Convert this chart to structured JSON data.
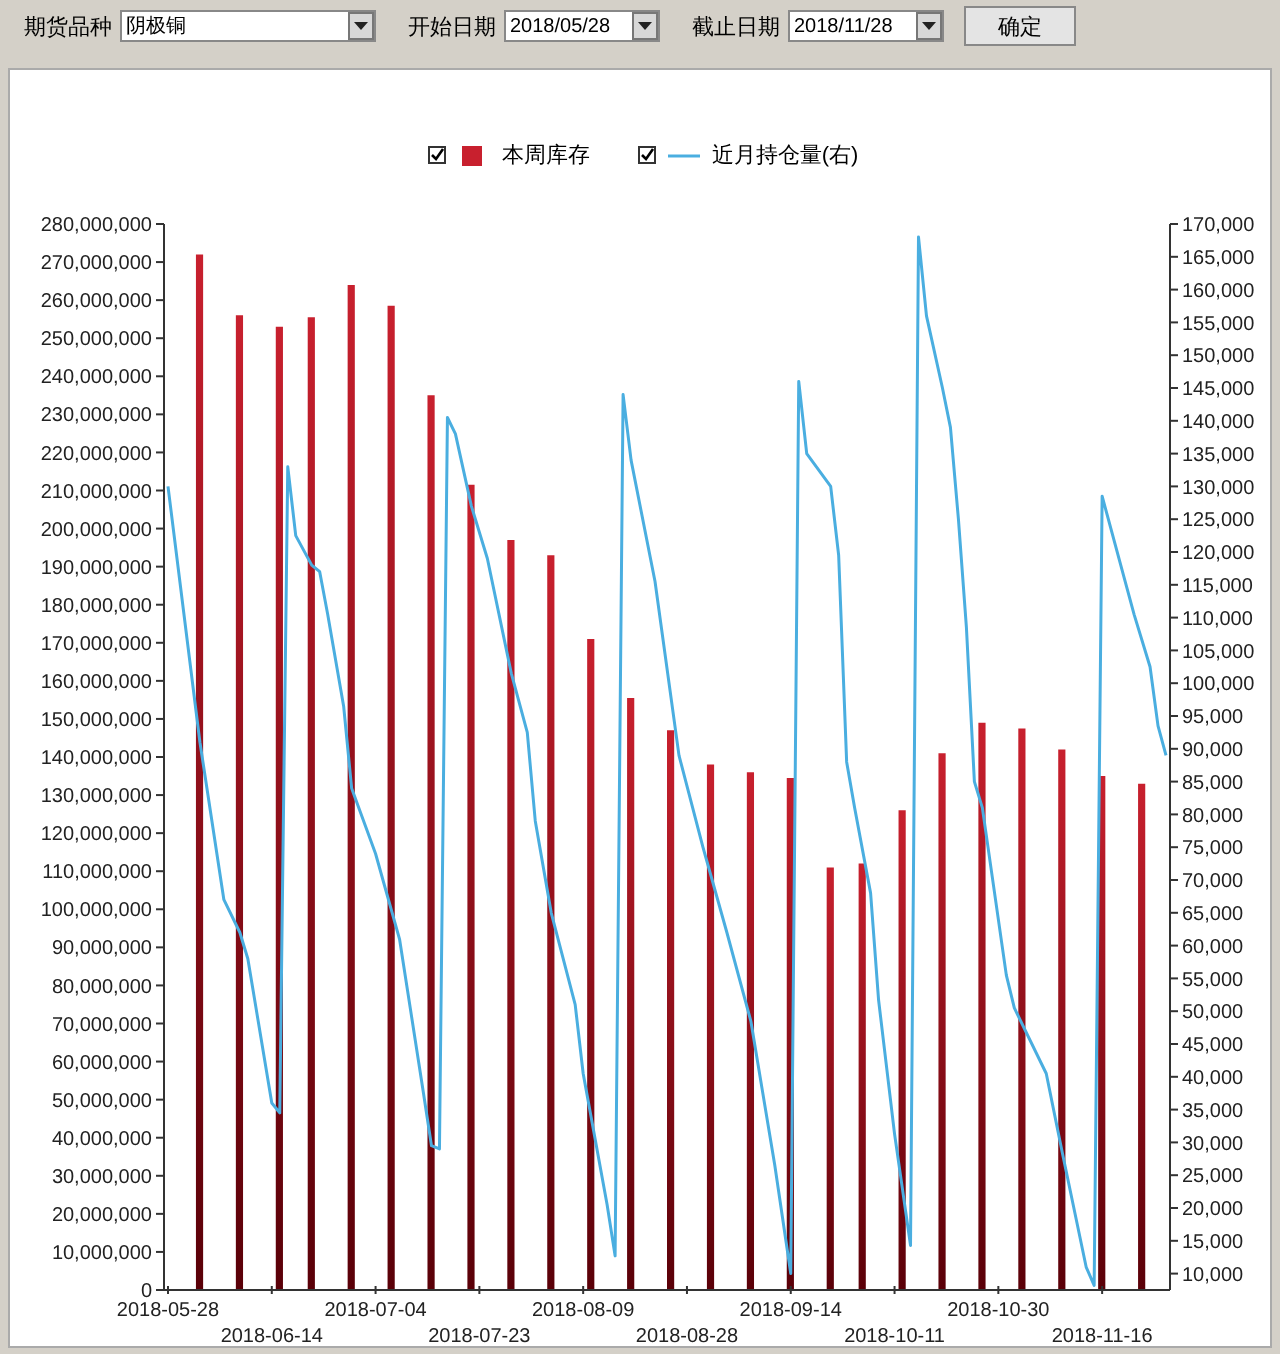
{
  "chart_data": {
    "type": "bar",
    "legend": "top",
    "grid": false,
    "annotations": [
      "期货品种",
      "阴极铜",
      "开始日期",
      "2018/05/28",
      "截止日期",
      "2018/11/28",
      "确定"
    ],
    "categories": [
      "2018-05-28",
      null,
      null,
      null,
      null,
      null,
      null,
      null,
      null,
      null,
      null,
      null,
      null,
      "2018-06-14",
      null,
      null,
      null,
      null,
      null,
      null,
      null,
      null,
      null,
      null,
      null,
      null,
      "2018-07-04",
      null,
      null,
      null,
      null,
      null,
      null,
      null,
      null,
      null,
      null,
      null,
      null,
      "2018-07-23",
      null,
      null,
      null,
      null,
      null,
      null,
      null,
      null,
      null,
      null,
      null,
      null,
      "2018-08-09",
      null,
      null,
      null,
      null,
      null,
      null,
      null,
      null,
      null,
      null,
      null,
      null,
      "2018-08-28",
      null,
      null,
      null,
      null,
      null,
      null,
      null,
      null,
      null,
      null,
      null,
      null,
      "2018-09-14",
      null,
      null,
      null,
      null,
      null,
      null,
      null,
      null,
      null,
      null,
      null,
      null,
      "2018-10-11",
      null,
      null,
      null,
      null,
      null,
      null,
      null,
      null,
      null,
      null,
      null,
      null,
      "2018-10-30",
      null,
      null,
      null,
      null,
      null,
      null,
      null,
      null,
      null,
      null,
      null,
      null,
      "2018-11-16",
      null,
      null,
      null,
      null,
      null,
      null,
      null,
      null
    ],
    "ylim": [
      0,
      280000000
    ],
    "yticks": [
      {
        "value": 0,
        "label": "0"
      },
      {
        "value": 10000000,
        "label": "10,000,000"
      },
      {
        "value": 20000000,
        "label": "20,000,000"
      },
      {
        "value": 30000000,
        "label": "30,000,000"
      },
      {
        "value": 40000000,
        "label": "40,000,000"
      },
      {
        "value": 50000000,
        "label": "50,000,000"
      },
      {
        "value": 60000000,
        "label": "60,000,000"
      },
      {
        "value": 70000000,
        "label": "70,000,000"
      },
      {
        "value": 80000000,
        "label": "80,000,000"
      },
      {
        "value": 90000000,
        "label": "90,000,000"
      },
      {
        "value": 100000000,
        "label": "100,000,000"
      },
      {
        "value": 110000000,
        "label": "110,000,000"
      },
      {
        "value": 120000000,
        "label": "120,000,000"
      },
      {
        "value": 130000000,
        "label": "130,000,000"
      },
      {
        "value": 140000000,
        "label": "140,000,000"
      },
      {
        "value": 150000000,
        "label": "150,000,000"
      },
      {
        "value": 160000000,
        "label": "160,000,000"
      },
      {
        "value": 170000000,
        "label": "170,000,000"
      },
      {
        "value": 180000000,
        "label": "180,000,000"
      },
      {
        "value": 190000000,
        "label": "190,000,000"
      },
      {
        "value": 200000000,
        "label": "200,000,000"
      },
      {
        "value": 210000000,
        "label": "210,000,000"
      },
      {
        "value": 220000000,
        "label": "220,000,000"
      },
      {
        "value": 230000000,
        "label": "230,000,000"
      },
      {
        "value": 240000000,
        "label": "240,000,000"
      },
      {
        "value": 250000000,
        "label": "250,000,000"
      },
      {
        "value": 260000000,
        "label": "260,000,000"
      },
      {
        "value": 270000000,
        "label": "270,000,000"
      },
      {
        "value": 280000000,
        "label": "280,000,000"
      }
    ],
    "y2lim": [
      7500,
      170000
    ],
    "y2ticks": [
      {
        "value": 10000,
        "label": "10,000"
      },
      {
        "value": 15000,
        "label": "15,000"
      },
      {
        "value": 20000,
        "label": "20,000"
      },
      {
        "value": 25000,
        "label": "25,000"
      },
      {
        "value": 30000,
        "label": "30,000"
      },
      {
        "value": 35000,
        "label": "35,000"
      },
      {
        "value": 40000,
        "label": "40,000"
      },
      {
        "value": 45000,
        "label": "45,000"
      },
      {
        "value": 50000,
        "label": "50,000"
      },
      {
        "value": 55000,
        "label": "55,000"
      },
      {
        "value": 60000,
        "label": "60,000"
      },
      {
        "value": 65000,
        "label": "65,000"
      },
      {
        "value": 70000,
        "label": "70,000"
      },
      {
        "value": 75000,
        "label": "75,000"
      },
      {
        "value": 80000,
        "label": "80,000"
      },
      {
        "value": 85000,
        "label": "85,000"
      },
      {
        "value": 90000,
        "label": "90,000"
      },
      {
        "value": 95000,
        "label": "95,000"
      },
      {
        "value": 100000,
        "label": "100,000"
      },
      {
        "value": 105000,
        "label": "105,000"
      },
      {
        "value": 110000,
        "label": "110,000"
      },
      {
        "value": 115000,
        "label": "115,000"
      },
      {
        "value": 120000,
        "label": "120,000"
      },
      {
        "value": 125000,
        "label": "125,000"
      },
      {
        "value": 130000,
        "label": "130,000"
      },
      {
        "value": 135000,
        "label": "135,000"
      },
      {
        "value": 140000,
        "label": "140,000"
      },
      {
        "value": 145000,
        "label": "145,000"
      },
      {
        "value": 150000,
        "label": "150,000"
      },
      {
        "value": 155000,
        "label": "155,000"
      },
      {
        "value": 160000,
        "label": "160,000"
      },
      {
        "value": 165000,
        "label": "165,000"
      },
      {
        "value": 170000,
        "label": "170,000"
      }
    ],
    "series": [
      {
        "name": "本周库存",
        "color": "#c8202e",
        "values": [
          null,
          null,
          null,
          null,
          272000000,
          null,
          null,
          null,
          null,
          256000000,
          null,
          null,
          null,
          null,
          253000000,
          null,
          null,
          null,
          255500000,
          null,
          null,
          null,
          null,
          264000000,
          null,
          null,
          null,
          null,
          258500000,
          null,
          null,
          null,
          null,
          235000000,
          null,
          null,
          null,
          null,
          211500000,
          null,
          null,
          null,
          null,
          197000000,
          null,
          null,
          null,
          null,
          193000000,
          null,
          null,
          null,
          null,
          171000000,
          null,
          null,
          null,
          null,
          155500000,
          null,
          null,
          null,
          null,
          147000000,
          null,
          null,
          null,
          null,
          138000000,
          null,
          null,
          null,
          null,
          136000000,
          null,
          null,
          null,
          null,
          134500000,
          null,
          null,
          null,
          null,
          111000000,
          null,
          null,
          null,
          112000000,
          null,
          null,
          null,
          null,
          126000000,
          null,
          null,
          null,
          null,
          141000000,
          null,
          null,
          null,
          null,
          149000000,
          null,
          null,
          null,
          null,
          147500000,
          null,
          null,
          null,
          null,
          142000000,
          null,
          null,
          null,
          null,
          135000000,
          null,
          null,
          null,
          null,
          133000000,
          null,
          null,
          null
        ]
      },
      {
        "name": "近月持仓量(右)",
        "type": "line",
        "axis": "y2",
        "color": "#4aaee0",
        "marker": "none",
        "values": [
          130000,
          null,
          null,
          null,
          91000,
          null,
          null,
          67000,
          null,
          62000,
          58000,
          null,
          null,
          36000,
          34500,
          133000,
          122500,
          null,
          118000,
          117000,
          110500,
          null,
          96500,
          84000,
          null,
          null,
          74000,
          null,
          null,
          61000,
          null,
          null,
          37500,
          29500,
          29000,
          140500,
          138000,
          null,
          127000,
          null,
          119000,
          null,
          null,
          101500,
          null,
          92500,
          79000,
          null,
          65000,
          null,
          null,
          51000,
          40500,
          null,
          null,
          20500,
          12700,
          144000,
          134000,
          null,
          null,
          115500,
          null,
          null,
          89000,
          null,
          null,
          75000,
          null,
          null,
          62000,
          null,
          null,
          48500,
          null,
          null,
          26500,
          null,
          10000,
          146000,
          135000,
          null,
          null,
          130000,
          119500,
          88000,
          81000,
          null,
          68000,
          51700,
          null,
          31300,
          null,
          14300,
          168000,
          156000,
          null,
          145000,
          139000,
          125000,
          108500,
          85000,
          81000,
          null,
          null,
          55500,
          50500,
          null,
          null,
          null,
          40500,
          null,
          28500,
          null,
          null,
          11000,
          8200,
          128500,
          null,
          null,
          115000,
          110500,
          null,
          102500,
          93500,
          89000
        ]
      }
    ]
  }
}
